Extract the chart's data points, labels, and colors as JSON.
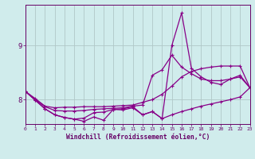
{
  "x": [
    0,
    1,
    2,
    3,
    4,
    5,
    6,
    7,
    8,
    9,
    10,
    11,
    12,
    13,
    14,
    15,
    16,
    17,
    18,
    19,
    20,
    21,
    22,
    23
  ],
  "line1": [
    8.15,
    8.02,
    7.88,
    7.85,
    7.86,
    7.86,
    7.87,
    7.87,
    7.87,
    7.88,
    7.89,
    7.9,
    7.95,
    8.0,
    8.1,
    8.25,
    8.42,
    8.52,
    8.57,
    8.6,
    8.62,
    8.62,
    8.62,
    8.22
  ],
  "line2": [
    8.15,
    8.0,
    7.87,
    7.8,
    7.79,
    7.79,
    7.8,
    7.82,
    7.83,
    7.84,
    7.85,
    7.88,
    7.9,
    8.45,
    8.55,
    8.82,
    8.6,
    8.48,
    8.38,
    8.35,
    8.35,
    8.38,
    8.42,
    8.22
  ],
  "line3": [
    8.15,
    7.99,
    7.83,
    7.72,
    7.67,
    7.64,
    7.66,
    7.76,
    7.77,
    7.82,
    7.83,
    7.87,
    7.72,
    7.78,
    7.65,
    9.0,
    9.6,
    8.58,
    8.42,
    8.32,
    8.28,
    8.38,
    8.45,
    8.22
  ],
  "line4": [
    8.15,
    7.99,
    7.83,
    7.72,
    7.67,
    7.64,
    7.6,
    7.68,
    7.62,
    7.82,
    7.81,
    7.85,
    7.72,
    7.78,
    7.65,
    7.72,
    7.78,
    7.83,
    7.88,
    7.92,
    7.96,
    8.0,
    8.05,
    8.22
  ],
  "line_color": "#880088",
  "bg_color": "#d0ecec",
  "grid_color": "#b0c8c8",
  "axis_color": "#660066",
  "tick_label_color": "#660066",
  "xlabel": "Windchill (Refroidissement éolien,°C)",
  "yticks": [
    8,
    9
  ],
  "xticks": [
    0,
    1,
    2,
    3,
    4,
    5,
    6,
    7,
    8,
    9,
    10,
    11,
    12,
    13,
    14,
    15,
    16,
    17,
    18,
    19,
    20,
    21,
    22,
    23
  ],
  "xlim": [
    0,
    23
  ],
  "ylim": [
    7.55,
    9.75
  ]
}
